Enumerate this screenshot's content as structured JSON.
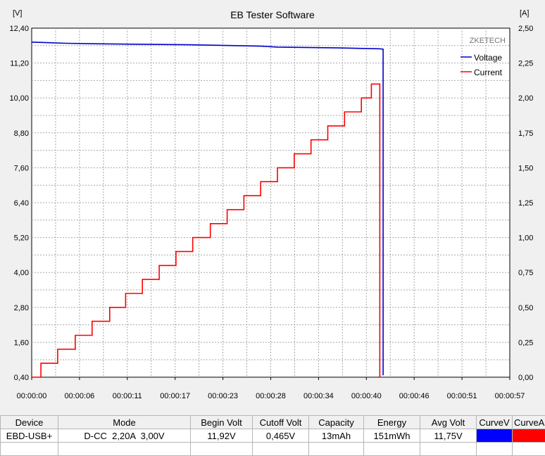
{
  "chart_data": {
    "type": "line",
    "title": "EB Tester Software",
    "watermark": "ZKETECH",
    "left_unit": "[V]",
    "right_unit": "[A]",
    "x_ticks": [
      "00:00:00",
      "00:00:06",
      "00:00:11",
      "00:00:17",
      "00:00:23",
      "00:00:28",
      "00:00:34",
      "00:00:40",
      "00:00:46",
      "00:00:51",
      "00:00:57"
    ],
    "y_left_ticks": [
      "0,40",
      "1,60",
      "2,80",
      "4,00",
      "5,20",
      "6,40",
      "7,60",
      "8,80",
      "10,00",
      "11,20",
      "12,40"
    ],
    "y_right_ticks": [
      "0,00",
      "0,25",
      "0,50",
      "0,75",
      "1,00",
      "1,25",
      "1,50",
      "1,75",
      "2,00",
      "2,25",
      "2,50"
    ],
    "x_range_seconds": [
      0,
      57
    ],
    "y_left_range": [
      0.4,
      12.4
    ],
    "y_right_range": [
      0,
      2.5
    ],
    "grid": true,
    "legend_position": "top-right",
    "series": [
      {
        "name": "Voltage",
        "axis": "left",
        "color": "#0000cc",
        "x": [
          0,
          2.1,
          4.1,
          8.3,
          11.2,
          18.6,
          22.6,
          27.3,
          29.3,
          36.6,
          41.4,
          41.9,
          41.9
        ],
        "y": [
          11.92,
          11.9,
          11.88,
          11.86,
          11.85,
          11.83,
          11.81,
          11.78,
          11.75,
          11.72,
          11.69,
          11.68,
          0.465
        ]
      },
      {
        "name": "Current",
        "axis": "right",
        "color": "#ff0000",
        "x": [
          0,
          1.1,
          1.1,
          3.1,
          3.1,
          5.2,
          5.2,
          7.2,
          7.2,
          9.3,
          9.3,
          11.2,
          11.2,
          13.2,
          13.2,
          15.2,
          15.2,
          17.2,
          17.2,
          19.2,
          19.2,
          21.3,
          21.3,
          23.3,
          23.3,
          25.3,
          25.3,
          27.3,
          27.3,
          29.3,
          29.3,
          31.3,
          31.3,
          33.3,
          33.3,
          35.3,
          35.3,
          37.3,
          37.3,
          39.3,
          39.3,
          40.5,
          40.5,
          41.5,
          41.5
        ],
        "y": [
          0.0,
          0.0,
          0.1,
          0.1,
          0.2,
          0.2,
          0.3,
          0.3,
          0.4,
          0.4,
          0.5,
          0.5,
          0.6,
          0.6,
          0.7,
          0.7,
          0.8,
          0.8,
          0.9,
          0.9,
          1.0,
          1.0,
          1.1,
          1.1,
          1.2,
          1.2,
          1.3,
          1.3,
          1.4,
          1.4,
          1.5,
          1.5,
          1.6,
          1.6,
          1.7,
          1.7,
          1.8,
          1.8,
          1.9,
          1.9,
          2.0,
          2.0,
          2.1,
          2.1,
          0.0
        ]
      }
    ]
  },
  "table": {
    "headers": [
      "Device",
      "Mode",
      "Begin Volt",
      "Cutoff Volt",
      "Capacity",
      "Energy",
      "Avg Volt",
      "CurveV",
      "CurveA"
    ],
    "row": [
      "EBD-USB+",
      "D-CC  2,20A  3,00V",
      "11,92V",
      "0,465V",
      "13mAh",
      "151mWh",
      "11,75V"
    ]
  }
}
